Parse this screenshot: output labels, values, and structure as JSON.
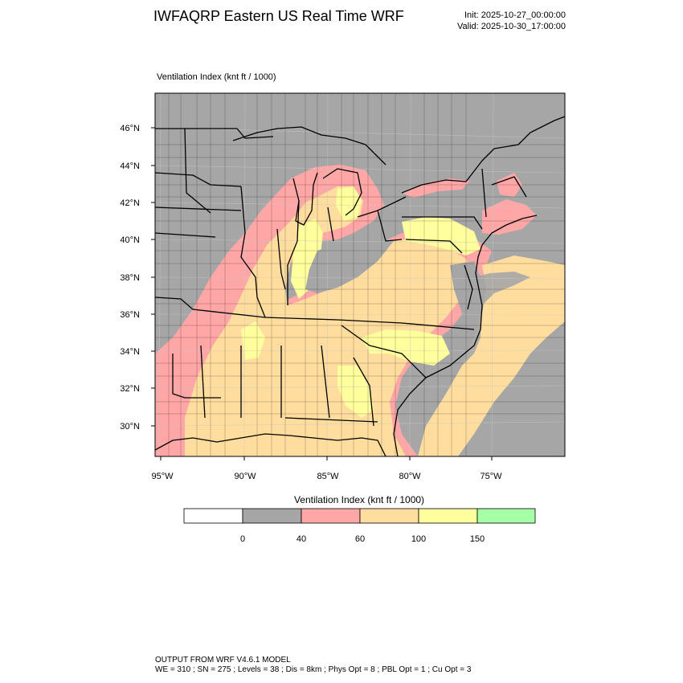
{
  "title": "IWFAQRP Eastern US Real Time WRF",
  "init_time": "Init: 2025-10-27_00:00:00",
  "valid_time": "Valid: 2025-10-30_17:00:00",
  "field_label": "Ventilation Index   (knt ft / 1000)",
  "lat_labels": [
    "46°N",
    "44°N",
    "42°N",
    "40°N",
    "38°N",
    "36°N",
    "34°N",
    "32°N",
    "30°N"
  ],
  "lon_labels": [
    "95°W",
    "90°W",
    "85°W",
    "80°W",
    "75°W"
  ],
  "colorbar": {
    "title": "Ventilation Index  (knt ft / 1000)",
    "colors": [
      "#ffffff",
      "#a6a6a6",
      "#ffa6a6",
      "#ffdd9e",
      "#ffff9e",
      "#a6ffa6"
    ],
    "tick_labels": [
      "0",
      "40",
      "60",
      "100",
      "150"
    ]
  },
  "footer": {
    "line1": "OUTPUT FROM WRF V4.6.1 MODEL",
    "line2": "WE = 310 ; SN = 275 ; Levels = 38 ; Dis = 8km ; Phys Opt = 8 ; PBL Opt = 1 ; Cu Opt = 3"
  }
}
